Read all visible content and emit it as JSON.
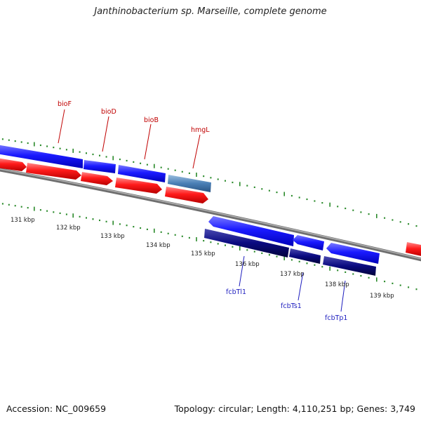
{
  "title": "Janthinobacterium sp. Marseille, complete genome",
  "accession": "Accession: NC_009659",
  "summary": "Topology: circular; Length: 4,110,251 bp; Genes: 3,749",
  "scale_labels": [
    "131 kbp",
    "132 kbp",
    "133 kbp",
    "134 kbp",
    "135 kbp",
    "136 kbp",
    "137 kbp",
    "138 kbp",
    "139 kbp"
  ],
  "gene_labels": [
    {
      "name": "bioF",
      "color": "#c00000"
    },
    {
      "name": "bioD",
      "color": "#c00000"
    },
    {
      "name": "bioB",
      "color": "#c00000"
    },
    {
      "name": "hmgL",
      "color": "#c00000"
    },
    {
      "name": "fcbTl1",
      "color": "#1f1fbf"
    },
    {
      "name": "fcbTs1",
      "color": "#1f1fbf"
    },
    {
      "name": "fcbTp1",
      "color": "#1f1fbf"
    }
  ],
  "colors": {
    "forward_cds": "#1010ee",
    "reverse_cds": "#ee1010",
    "other_feature": "#4a7fb5",
    "dark_cds": "#0a0a70",
    "backbone": "#888888",
    "ticks": "#2a8a2a"
  }
}
